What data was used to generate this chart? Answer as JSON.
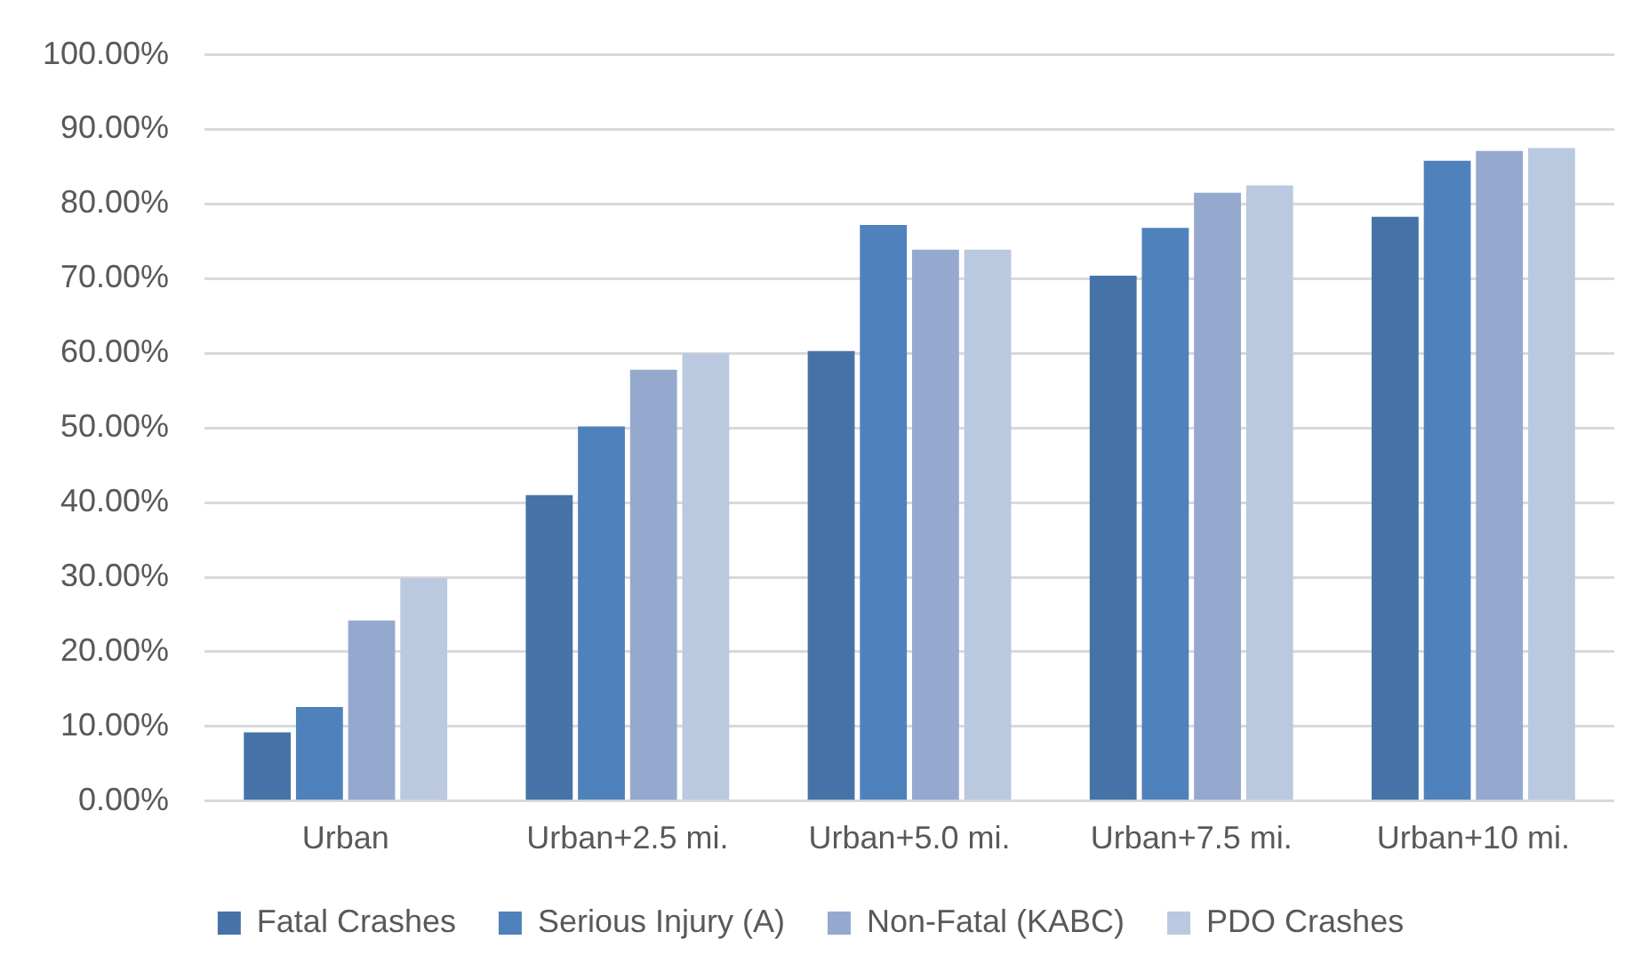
{
  "chart_data": {
    "type": "bar",
    "categories": [
      "Urban",
      "Urban+2.5 mi.",
      "Urban+5.0 mi.",
      "Urban+7.5 mi.",
      "Urban+10 mi."
    ],
    "series": [
      {
        "name": "Fatal Crashes",
        "color": "#4673a7",
        "values": [
          9.2,
          41.0,
          60.3,
          70.4,
          78.3
        ]
      },
      {
        "name": "Serious Injury (A)",
        "color": "#4f81bc",
        "values": [
          12.6,
          50.2,
          77.2,
          76.8,
          85.8
        ]
      },
      {
        "name": "Non-Fatal (KABC)",
        "color": "#95a9cf",
        "values": [
          24.2,
          57.8,
          73.9,
          81.5,
          87.1
        ]
      },
      {
        "name": "PDO Crashes",
        "color": "#bac8e0",
        "values": [
          29.9,
          60.0,
          73.9,
          82.5,
          87.5
        ]
      }
    ],
    "ylim": [
      0,
      100
    ],
    "yticks": [
      {
        "value": 0,
        "label": "0.00%"
      },
      {
        "value": 10,
        "label": "10.00%"
      },
      {
        "value": 20,
        "label": "20.00%"
      },
      {
        "value": 30,
        "label": "30.00%"
      },
      {
        "value": 40,
        "label": "40.00%"
      },
      {
        "value": 50,
        "label": "50.00%"
      },
      {
        "value": 60,
        "label": "60.00%"
      },
      {
        "value": 70,
        "label": "70.00%"
      },
      {
        "value": 80,
        "label": "80.00%"
      },
      {
        "value": 90,
        "label": "90.00%"
      },
      {
        "value": 100,
        "label": "100.00%"
      }
    ],
    "grid": "y",
    "legend": "bottom"
  }
}
